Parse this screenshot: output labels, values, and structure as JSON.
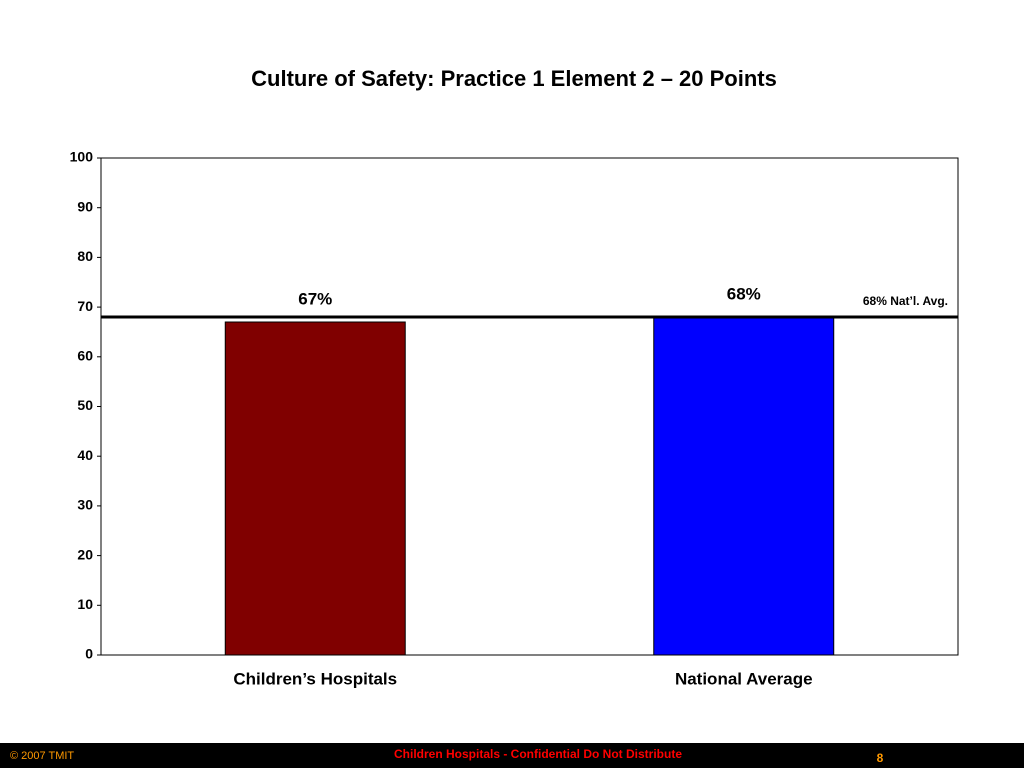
{
  "chart_data": {
    "type": "bar",
    "title": "Culture of Safety: Practice 1 Element 2 – 20 Points",
    "categories": [
      "Children’s Hospitals",
      "National Average"
    ],
    "values": [
      67,
      68
    ],
    "value_labels": [
      "67%",
      "68%"
    ],
    "colors": [
      "#800000",
      "#0000ff"
    ],
    "ylim": [
      0,
      100
    ],
    "yticks": [
      0,
      10,
      20,
      30,
      40,
      50,
      60,
      70,
      80,
      90,
      100
    ],
    "grid": false,
    "reference_line": {
      "value": 68,
      "label": "68% Nat’l. Avg."
    }
  },
  "footer": {
    "left": "© 2007 TMIT",
    "center": "Children Hospitals - Confidential Do Not Distribute",
    "page": "8"
  }
}
